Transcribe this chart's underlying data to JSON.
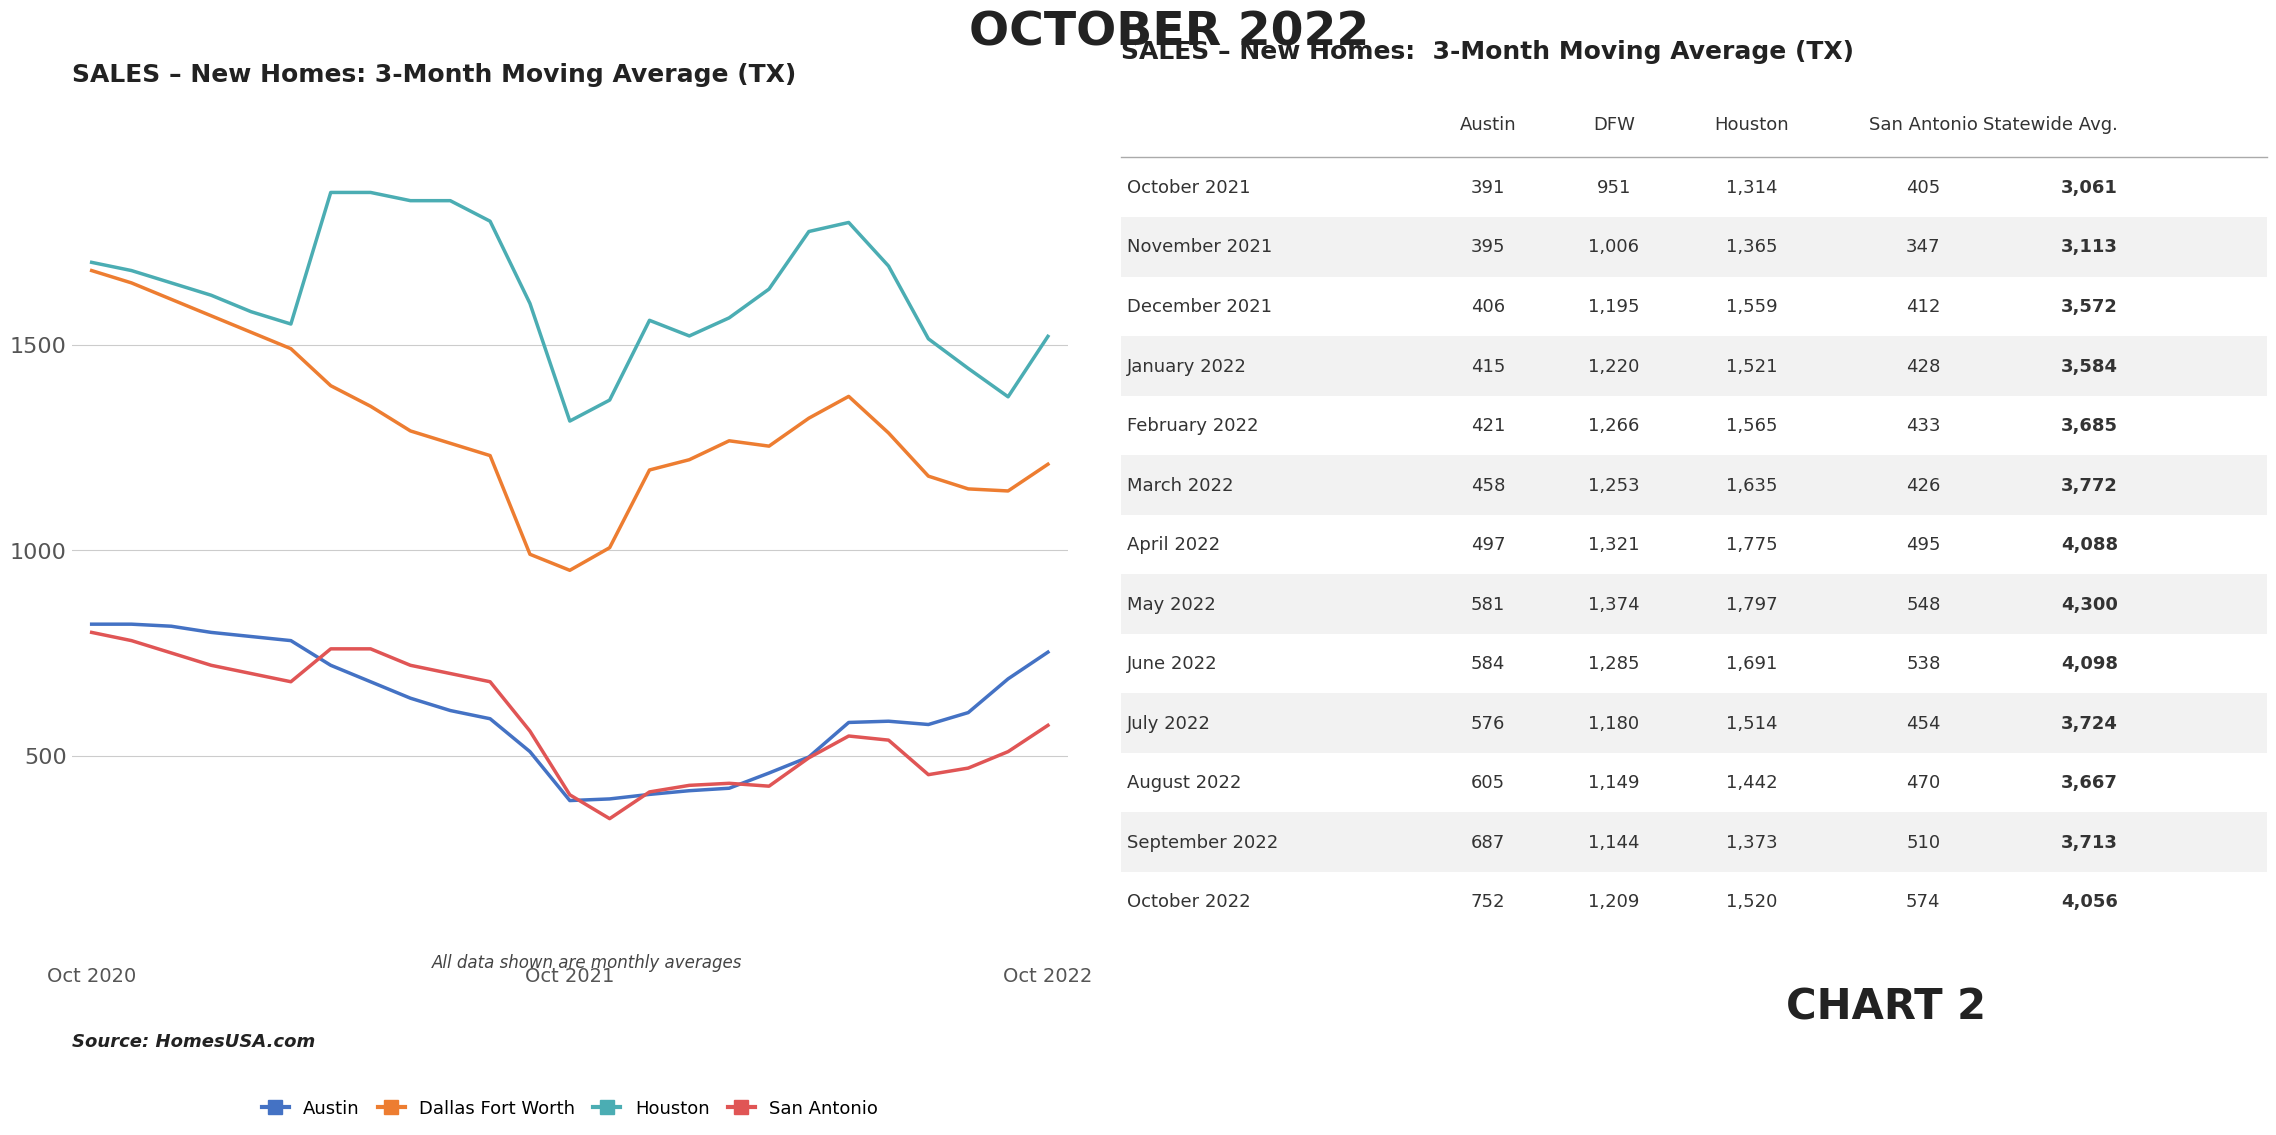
{
  "title": "OCTOBER 2022",
  "chart_title": "SALES – New Homes: 3-Month Moving Average (TX)",
  "table_title": "SALES – New Homes:  3-Month Moving Average (TX)",
  "source": "Source: HomesUSA.com",
  "chart2_label": "CHART 2",
  "note": "All data shown are monthly averages",
  "x_labels": [
    "Oct 2020",
    "Oct 2021",
    "Oct 2022"
  ],
  "austin": [
    820,
    820,
    815,
    800,
    790,
    780,
    720,
    680,
    640,
    610,
    590,
    510,
    391,
    395,
    406,
    415,
    421,
    458,
    497,
    581,
    584,
    576,
    605,
    687,
    752
  ],
  "dfw": [
    1680,
    1650,
    1610,
    1570,
    1530,
    1490,
    1400,
    1350,
    1290,
    1260,
    1230,
    990,
    951,
    1006,
    1195,
    1220,
    1266,
    1253,
    1321,
    1374,
    1285,
    1180,
    1149,
    1144,
    1209
  ],
  "houston": [
    1700,
    1680,
    1650,
    1620,
    1580,
    1550,
    1870,
    1870,
    1850,
    1850,
    1800,
    1600,
    1314,
    1365,
    1559,
    1521,
    1565,
    1635,
    1775,
    1797,
    1691,
    1514,
    1442,
    1373,
    1520
  ],
  "san_antonio": [
    800,
    780,
    750,
    720,
    700,
    680,
    760,
    760,
    720,
    700,
    680,
    560,
    405,
    347,
    412,
    428,
    433,
    426,
    495,
    548,
    538,
    454,
    470,
    510,
    574
  ],
  "table_rows": [
    [
      "October 2021",
      "391",
      "951",
      "1,314",
      "405",
      "3,061"
    ],
    [
      "November 2021",
      "395",
      "1,006",
      "1,365",
      "347",
      "3,113"
    ],
    [
      "December 2021",
      "406",
      "1,195",
      "1,559",
      "412",
      "3,572"
    ],
    [
      "January 2022",
      "415",
      "1,220",
      "1,521",
      "428",
      "3,584"
    ],
    [
      "February 2022",
      "421",
      "1,266",
      "1,565",
      "433",
      "3,685"
    ],
    [
      "March 2022",
      "458",
      "1,253",
      "1,635",
      "426",
      "3,772"
    ],
    [
      "April 2022",
      "497",
      "1,321",
      "1,775",
      "495",
      "4,088"
    ],
    [
      "May 2022",
      "581",
      "1,374",
      "1,797",
      "548",
      "4,300"
    ],
    [
      "June 2022",
      "584",
      "1,285",
      "1,691",
      "538",
      "4,098"
    ],
    [
      "July 2022",
      "576",
      "1,180",
      "1,514",
      "454",
      "3,724"
    ],
    [
      "August 2022",
      "605",
      "1,149",
      "1,442",
      "470",
      "3,667"
    ],
    [
      "September 2022",
      "687",
      "1,144",
      "1,373",
      "510",
      "3,713"
    ],
    [
      "October 2022",
      "752",
      "1,209",
      "1,520",
      "574",
      "4,056"
    ]
  ],
  "col_headers": [
    "",
    "Austin",
    "DFW",
    "Houston",
    "San Antonio",
    "Statewide Avg."
  ],
  "col_widths": [
    0.26,
    0.12,
    0.1,
    0.14,
    0.16,
    0.18
  ],
  "col_aligns": [
    "left",
    "center",
    "center",
    "center",
    "center",
    "right"
  ],
  "colors": {
    "austin": "#4472C4",
    "dfw": "#ED7D31",
    "houston": "#4BADB3",
    "san_antonio": "#E05555",
    "background": "#FFFFFF",
    "grid": "#CCCCCC",
    "table_odd": "#F2F2F2",
    "table_even": "#FFFFFF",
    "text": "#333333",
    "axis_text": "#555555",
    "line_sep": "#AAAAAA"
  },
  "ylim": [
    0,
    2100
  ],
  "yticks": [
    500,
    1000,
    1500
  ]
}
